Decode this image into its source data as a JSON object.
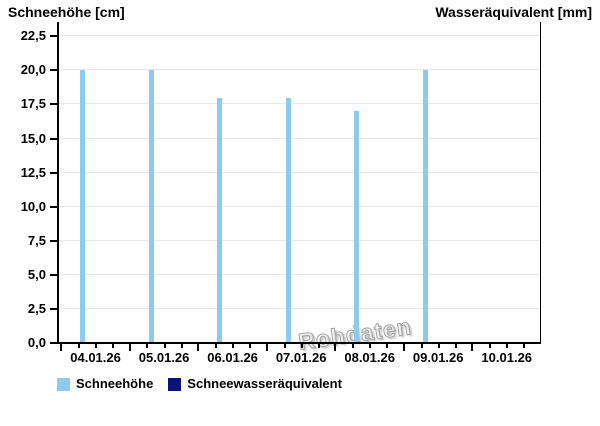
{
  "titles": {
    "left": "Schneehöhe [cm]",
    "right": "Wasseräquivalent [mm]"
  },
  "watermark": {
    "text": "Rohdaten"
  },
  "legend": {
    "items": [
      {
        "label": "Schneehöhe",
        "color": "#8DCAEF"
      },
      {
        "label": "Schneewasseräquivalent",
        "color": "#0B1280"
      }
    ]
  },
  "chart_data": {
    "type": "bar",
    "title": "",
    "left_axis_label": "Schneehöhe [cm]",
    "right_axis_label": "Wasseräquivalent [mm]",
    "categories": [
      "04.01.26",
      "05.01.26",
      "06.01.26",
      "07.01.26",
      "08.01.26",
      "09.01.26",
      "10.01.26"
    ],
    "series": [
      {
        "name": "Schneehöhe",
        "axis": "left",
        "unit": "cm",
        "color": "#8DCAEF",
        "values": [
          20,
          20,
          18,
          18,
          17,
          20,
          null
        ]
      },
      {
        "name": "Schneewasseräquivalent",
        "axis": "right",
        "unit": "mm",
        "color": "#0B1280",
        "values": [
          null,
          null,
          null,
          null,
          null,
          null,
          null
        ]
      }
    ],
    "yticks_left": [
      {
        "value": 0.0,
        "label": "0,0"
      },
      {
        "value": 2.5,
        "label": "2,5"
      },
      {
        "value": 5.0,
        "label": "5,0"
      },
      {
        "value": 7.5,
        "label": "7,5"
      },
      {
        "value": 10.0,
        "label": "10,0"
      },
      {
        "value": 12.5,
        "label": "12,5"
      },
      {
        "value": 15.0,
        "label": "15,0"
      },
      {
        "value": 17.5,
        "label": "17,5"
      },
      {
        "value": 20.0,
        "label": "20,0"
      },
      {
        "value": 22.5,
        "label": "22,5"
      }
    ],
    "ylim_left": [
      0,
      23.5
    ],
    "yticks_right": [],
    "grid": "horizontal",
    "legend_position": "bottom",
    "x_axis_type": "time-daily",
    "x_minor_ticks_per_day": 3,
    "bar_day_fraction": 0.31,
    "watermark": "Rohdaten"
  }
}
